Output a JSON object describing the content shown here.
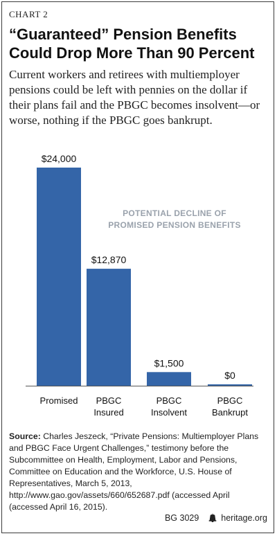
{
  "header": {
    "chart_label": "CHART 2",
    "title": "“Guaranteed” Pension Benefits Could Drop More Than 90 Percent",
    "subtitle": "Current workers and retirees with multiemployer pensions could be left with pennies on the dollar if their plans fail and the PBGC becomes insolvent—or worse, nothing if the PBGC goes bankrupt."
  },
  "chart_data": {
    "type": "bar",
    "categories": [
      [
        "Promised"
      ],
      [
        "PBGC",
        "Insured"
      ],
      [
        "PBGC",
        "Insolvent"
      ],
      [
        "PBGC",
        "Bankrupt"
      ]
    ],
    "values": [
      24000,
      12870,
      1500,
      0
    ],
    "value_labels": [
      "$24,000",
      "$12,870",
      "$1,500",
      "$0"
    ],
    "annotation": [
      "POTENTIAL DECLINE OF",
      "PROMISED PENSION BENEFITS"
    ],
    "ylim": [
      0,
      24000
    ],
    "grid": false,
    "colors": {
      "bar": "#3465a8",
      "annotation": "#9aa2ac",
      "axis": "#555555"
    }
  },
  "source": {
    "label": "Source:",
    "text": " Charles Jeszeck, “Private Pensions: Multiemployer Plans and PBGC Face Urgent Challenges,” testimony before the Subcommittee on Health, Employment, Labor and Pensions, Committee on Education and the Workforce, U.S. House of Representatives, March 5, 2013, http://www.gao.gov/assets/660/652687.pdf (accessed April (accessed April 16, 2015)."
  },
  "footer": {
    "code": "BG 3029",
    "site": "heritage.org",
    "icon": "liberty-bell-icon"
  }
}
